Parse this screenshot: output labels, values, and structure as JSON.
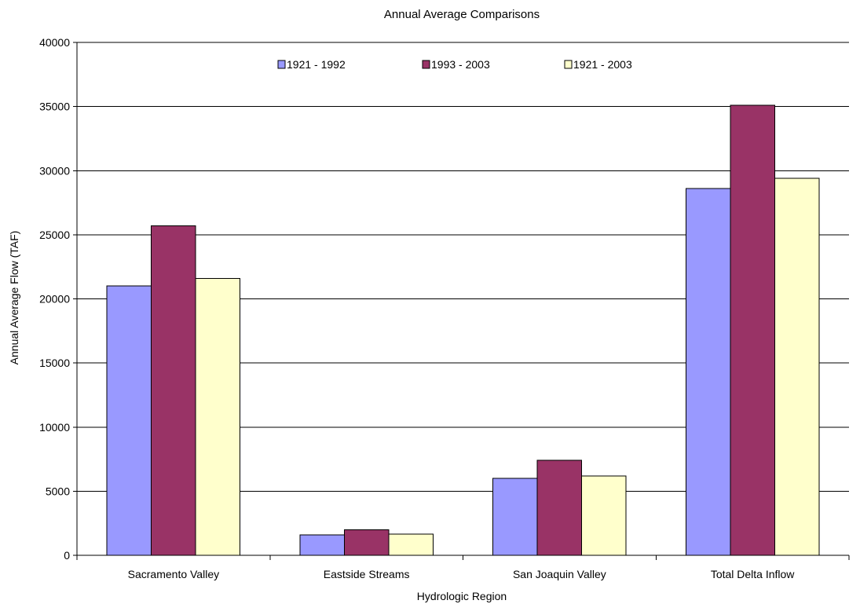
{
  "chart_data": {
    "type": "bar",
    "title": "Annual Average Comparisons",
    "xlabel": "Hydrologic Region",
    "ylabel": "Annual Average Flow (TAF)",
    "ylim": [
      0,
      40000
    ],
    "yticks": [
      0,
      5000,
      10000,
      15000,
      20000,
      25000,
      30000,
      35000,
      40000
    ],
    "grid": true,
    "legend_position": "top-center",
    "categories": [
      "Sacramento Valley",
      "Eastside Streams",
      "San Joaquin Valley",
      "Total Delta Inflow"
    ],
    "series": [
      {
        "name": "1921 - 1992",
        "color": "#9999ff",
        "values": [
          21000,
          1600,
          6000,
          28600
        ]
      },
      {
        "name": "1993 - 2003",
        "color": "#993366",
        "values": [
          25700,
          2000,
          7400,
          35100
        ]
      },
      {
        "name": "1921 - 2003",
        "color": "#ffffcc",
        "values": [
          21600,
          1650,
          6200,
          29400
        ]
      }
    ]
  }
}
